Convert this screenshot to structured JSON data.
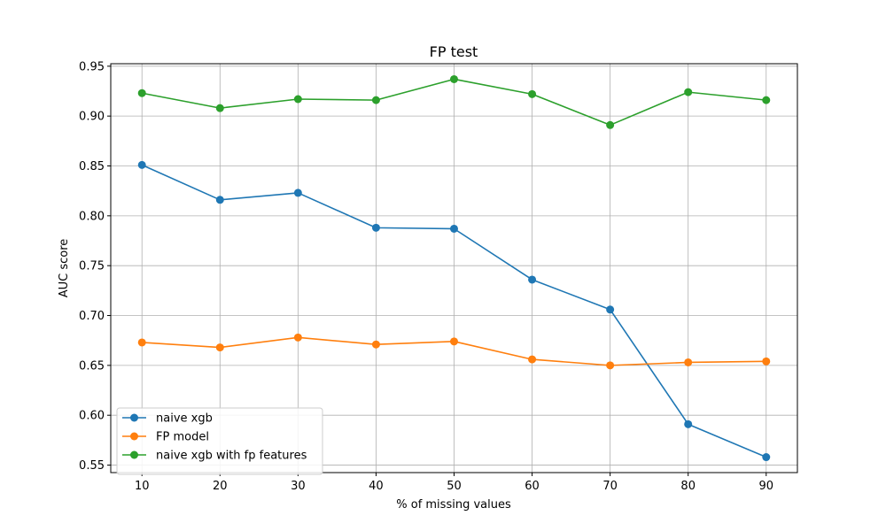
{
  "chart_data": {
    "type": "line",
    "title": "FP test",
    "xlabel": "% of missing values",
    "ylabel": "AUC score",
    "x": [
      10,
      20,
      30,
      40,
      50,
      60,
      70,
      80,
      90
    ],
    "x_ticks": [
      "10",
      "20",
      "30",
      "40",
      "50",
      "60",
      "70",
      "80",
      "90"
    ],
    "xlim": [
      6,
      94
    ],
    "y_ticks": [
      "0.55",
      "0.60",
      "0.65",
      "0.70",
      "0.75",
      "0.80",
      "0.85",
      "0.90",
      "0.95"
    ],
    "ylim": [
      0.5425,
      0.9525
    ],
    "grid": true,
    "legend_position": "lower-left",
    "series": [
      {
        "name": "naive xgb",
        "color": "#1f77b4",
        "values": [
          0.851,
          0.816,
          0.823,
          0.788,
          0.787,
          0.736,
          0.706,
          0.591,
          0.558
        ]
      },
      {
        "name": "FP model",
        "color": "#ff7f0e",
        "values": [
          0.673,
          0.668,
          0.678,
          0.671,
          0.674,
          0.656,
          0.65,
          0.653,
          0.654
        ]
      },
      {
        "name": "naive xgb with fp features",
        "color": "#2ca02c",
        "values": [
          0.923,
          0.908,
          0.917,
          0.916,
          0.937,
          0.922,
          0.891,
          0.924,
          0.916
        ]
      }
    ]
  }
}
